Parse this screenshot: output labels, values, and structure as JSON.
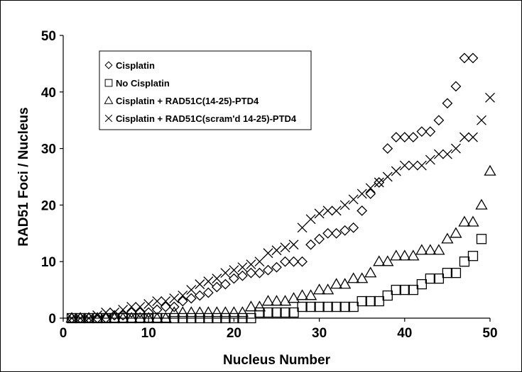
{
  "chart_data": {
    "type": "scatter",
    "title": "",
    "xlabel": "Nucleus Number",
    "ylabel": "RAD51 Foci / Nucleus",
    "xlim": [
      0,
      50
    ],
    "ylim": [
      0,
      50
    ],
    "xticks": [
      "0",
      "10",
      "20",
      "30",
      "40",
      "50"
    ],
    "yticks": [
      "0",
      "10",
      "20",
      "30",
      "40",
      "50"
    ],
    "grid": false,
    "legend_position": "top-left",
    "series": [
      {
        "name": "Cisplatin",
        "marker": "diamond",
        "x": [
          1,
          2,
          3,
          4,
          5,
          6,
          7,
          8,
          9,
          10,
          11,
          12,
          13,
          14,
          15,
          16,
          17,
          18,
          19,
          20,
          21,
          22,
          23,
          24,
          25,
          26,
          27,
          28,
          29,
          30,
          31,
          32,
          33,
          34,
          35,
          36,
          37,
          38,
          39,
          40,
          41,
          42,
          43,
          44,
          45,
          46,
          47,
          48
        ],
        "y": [
          0,
          0,
          0,
          0,
          0,
          0.5,
          0.5,
          1,
          1,
          1,
          1.5,
          2,
          2,
          3,
          3.5,
          4,
          4.5,
          5.5,
          6,
          7,
          7.5,
          8,
          8,
          8.5,
          9,
          10,
          10,
          10,
          13,
          14,
          15,
          15,
          15.5,
          16,
          19,
          22,
          24,
          30,
          32,
          32,
          32,
          33,
          33,
          35,
          38,
          41,
          46,
          46
        ]
      },
      {
        "name": "No Cisplatin",
        "marker": "square",
        "x": [
          1,
          2,
          3,
          4,
          5,
          6,
          7,
          8,
          9,
          10,
          11,
          12,
          13,
          14,
          15,
          16,
          17,
          18,
          19,
          20,
          21,
          22,
          23,
          24,
          25,
          26,
          27,
          28,
          29,
          30,
          31,
          32,
          33,
          34,
          35,
          36,
          37,
          38,
          39,
          40,
          41,
          42,
          43,
          44,
          45,
          46,
          47,
          48,
          49
        ],
        "y": [
          0,
          0,
          0,
          0,
          0,
          0,
          0,
          0,
          0,
          0,
          0,
          0,
          0,
          0,
          0,
          0,
          0,
          0,
          0,
          0,
          0,
          0,
          1,
          1,
          1,
          1,
          1,
          2,
          2,
          2,
          2,
          2,
          2,
          2,
          3,
          3,
          3,
          4,
          5,
          5,
          5,
          6,
          7,
          7,
          8,
          8,
          10,
          11,
          14
        ]
      },
      {
        "name": "Cisplatin + RAD51C(14-25)-PTD4",
        "marker": "triangle",
        "x": [
          1,
          2,
          3,
          4,
          5,
          6,
          7,
          8,
          9,
          10,
          11,
          12,
          13,
          14,
          15,
          16,
          17,
          18,
          19,
          20,
          21,
          22,
          23,
          24,
          25,
          26,
          27,
          28,
          29,
          30,
          31,
          32,
          33,
          34,
          35,
          36,
          37,
          38,
          39,
          40,
          41,
          42,
          43,
          44,
          45,
          46,
          47,
          48,
          49,
          50
        ],
        "y": [
          0,
          0,
          0,
          0,
          0,
          0,
          0,
          0,
          0,
          0,
          0,
          0,
          1,
          1,
          1,
          1,
          1,
          1,
          1,
          1,
          1,
          2,
          2,
          3,
          3,
          3,
          3.5,
          4,
          4,
          5,
          5,
          6,
          6,
          7,
          7,
          8,
          10,
          10,
          11,
          11,
          11,
          12,
          12,
          12,
          14,
          15,
          17,
          17,
          20,
          26
        ]
      },
      {
        "name": "Cisplatin + RAD51C(scram'd 14-25)-PTD4",
        "marker": "x",
        "x": [
          1,
          2,
          3,
          4,
          5,
          6,
          7,
          8,
          9,
          10,
          11,
          12,
          13,
          14,
          15,
          16,
          17,
          18,
          19,
          20,
          21,
          22,
          23,
          24,
          25,
          26,
          27,
          28,
          29,
          30,
          31,
          32,
          33,
          34,
          35,
          36,
          37,
          38,
          39,
          40,
          41,
          42,
          43,
          44,
          45,
          46,
          47,
          48,
          49,
          50
        ],
        "y": [
          0,
          0,
          0,
          0.5,
          1,
          1,
          1.5,
          2,
          2,
          2.5,
          3,
          3,
          3.5,
          4,
          5,
          6,
          6.5,
          7,
          8,
          8.5,
          9,
          9.5,
          10,
          11.5,
          12,
          12.5,
          13,
          16,
          17.5,
          18.5,
          19,
          19,
          20,
          21,
          22,
          23,
          24,
          25,
          26,
          27,
          27,
          27,
          28,
          29,
          29,
          30,
          32,
          32,
          35,
          39
        ]
      }
    ]
  }
}
